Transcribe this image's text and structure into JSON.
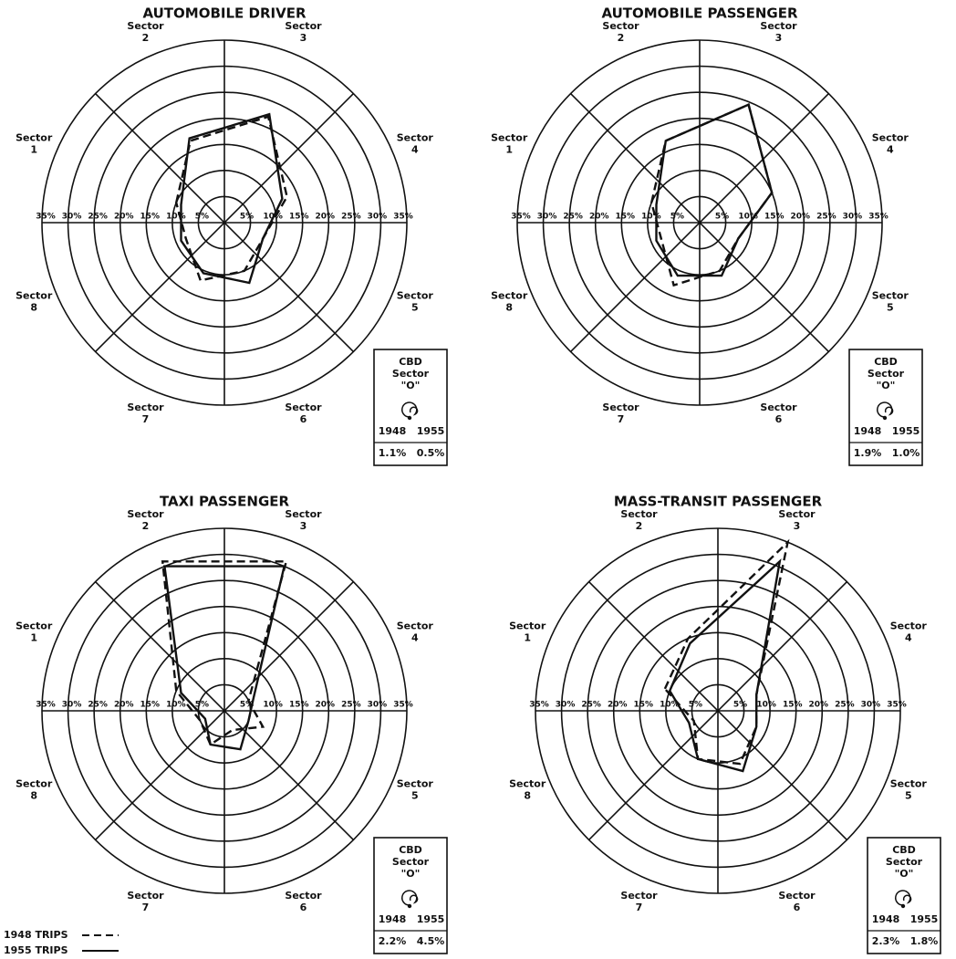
{
  "chart_data": [
    {
      "type": "radar",
      "title": "AUTOMOBILE DRIVER",
      "categories": [
        "Sector 1",
        "Sector 2",
        "Sector 3",
        "Sector 4",
        "Sector 5",
        "Sector 6",
        "Sector 7",
        "Sector 8"
      ],
      "rlim": [
        0,
        35
      ],
      "rticks": [
        {
          "value": 5,
          "label": "5%"
        },
        {
          "value": 10,
          "label": "10%"
        },
        {
          "value": 15,
          "label": "15%"
        },
        {
          "value": 20,
          "label": "20%"
        },
        {
          "value": 25,
          "label": "25%"
        },
        {
          "value": 30,
          "label": "30%"
        },
        {
          "value": 35,
          "label": "35%"
        }
      ],
      "series": [
        {
          "name": "1948 TRIPS",
          "style": "dashed",
          "color": "#111111",
          "values": [
            10,
            17,
            22,
            13,
            8,
            10,
            12,
            8
          ]
        },
        {
          "name": "1955 TRIPS",
          "style": "solid",
          "color": "#111111",
          "values": [
            9,
            17.5,
            22.5,
            12,
            8,
            12.5,
            10.5,
            9
          ]
        }
      ],
      "cbd": {
        "label": "CBD Sector \"O\"",
        "years": [
          "1948",
          "1955"
        ],
        "values": [
          1.1,
          0.5
        ],
        "value_labels": [
          "1.1%",
          "0.5%"
        ]
      }
    },
    {
      "type": "radar",
      "title": "AUTOMOBILE PASSENGER",
      "categories": [
        "Sector 1",
        "Sector 2",
        "Sector 3",
        "Sector 4",
        "Sector 5",
        "Sector 6",
        "Sector 7",
        "Sector 8"
      ],
      "rlim": [
        0,
        35
      ],
      "rticks": [
        {
          "value": 5,
          "label": "5%"
        },
        {
          "value": 10,
          "label": "10%"
        },
        {
          "value": 15,
          "label": "15%"
        },
        {
          "value": 20,
          "label": "20%"
        },
        {
          "value": 25,
          "label": "25%"
        },
        {
          "value": 30,
          "label": "30%"
        },
        {
          "value": 35,
          "label": "35%"
        }
      ],
      "series": [
        {
          "style": "dashed",
          "color": "#111111",
          "values": [
            10,
            17,
            24.5,
            15,
            8,
            10,
            13,
            8
          ]
        },
        {
          "style": "solid",
          "color": "#111111",
          "values": [
            9,
            17,
            24.5,
            15,
            8,
            11,
            11,
            9
          ]
        }
      ],
      "cbd": {
        "label": "CBD Sector \"O\"",
        "years": [
          "1948",
          "1955"
        ],
        "values": [
          1.9,
          1.0
        ],
        "value_labels": [
          "1.9%",
          "1.0%"
        ]
      }
    },
    {
      "type": "radar",
      "title": "TAXI PASSENGER",
      "categories": [
        "Sector 1",
        "Sector 2",
        "Sector 3",
        "Sector 4",
        "Sector 5",
        "Sector 6",
        "Sector 7",
        "Sector 8"
      ],
      "rlim": [
        0,
        35
      ],
      "rticks": [
        {
          "value": 5,
          "label": "5%"
        },
        {
          "value": 10,
          "label": "10%"
        },
        {
          "value": 15,
          "label": "15%"
        },
        {
          "value": 20,
          "label": "20%"
        },
        {
          "value": 25,
          "label": "25%"
        },
        {
          "value": 30,
          "label": "30%"
        },
        {
          "value": 35,
          "label": "35%"
        }
      ],
      "series": [
        {
          "style": "dashed",
          "color": "#111111",
          "values": [
            10,
            31,
            31,
            5,
            8,
            4,
            7,
            5
          ]
        },
        {
          "style": "solid",
          "color": "#111111",
          "values": [
            9,
            30,
            30,
            6,
            5,
            8,
            7,
            4
          ]
        }
      ],
      "cbd": {
        "label": "CBD Sector \"O\"",
        "years": [
          "1948",
          "1955"
        ],
        "values": [
          2.2,
          4.5
        ],
        "value_labels": [
          "2.2%",
          "4.5%"
        ]
      }
    },
    {
      "type": "radar",
      "title": "MASS-TRANSIT PASSENGER",
      "categories": [
        "Sector 1",
        "Sector 2",
        "Sector 3",
        "Sector 4",
        "Sector 5",
        "Sector 6",
        "Sector 7",
        "Sector 8"
      ],
      "rlim": [
        0,
        35
      ],
      "rticks": [
        {
          "value": 5,
          "label": "5%"
        },
        {
          "value": 10,
          "label": "10%"
        },
        {
          "value": 15,
          "label": "15%"
        },
        {
          "value": 20,
          "label": "20%"
        },
        {
          "value": 25,
          "label": "25%"
        },
        {
          "value": 30,
          "label": "30%"
        },
        {
          "value": 35,
          "label": "35%"
        }
      ],
      "series": [
        {
          "style": "dashed",
          "color": "#111111",
          "values": [
            11,
            15,
            35,
            8,
            8,
            11,
            10,
            5
          ]
        },
        {
          "style": "solid",
          "color": "#111111",
          "values": [
            10,
            14,
            31,
            8,
            8,
            12.5,
            10,
            6
          ]
        }
      ],
      "cbd": {
        "label": "CBD Sector \"O\"",
        "years": [
          "1948",
          "1955"
        ],
        "values": [
          2.3,
          1.8
        ],
        "value_labels": [
          "2.3%",
          "1.8%"
        ]
      }
    }
  ]
}
